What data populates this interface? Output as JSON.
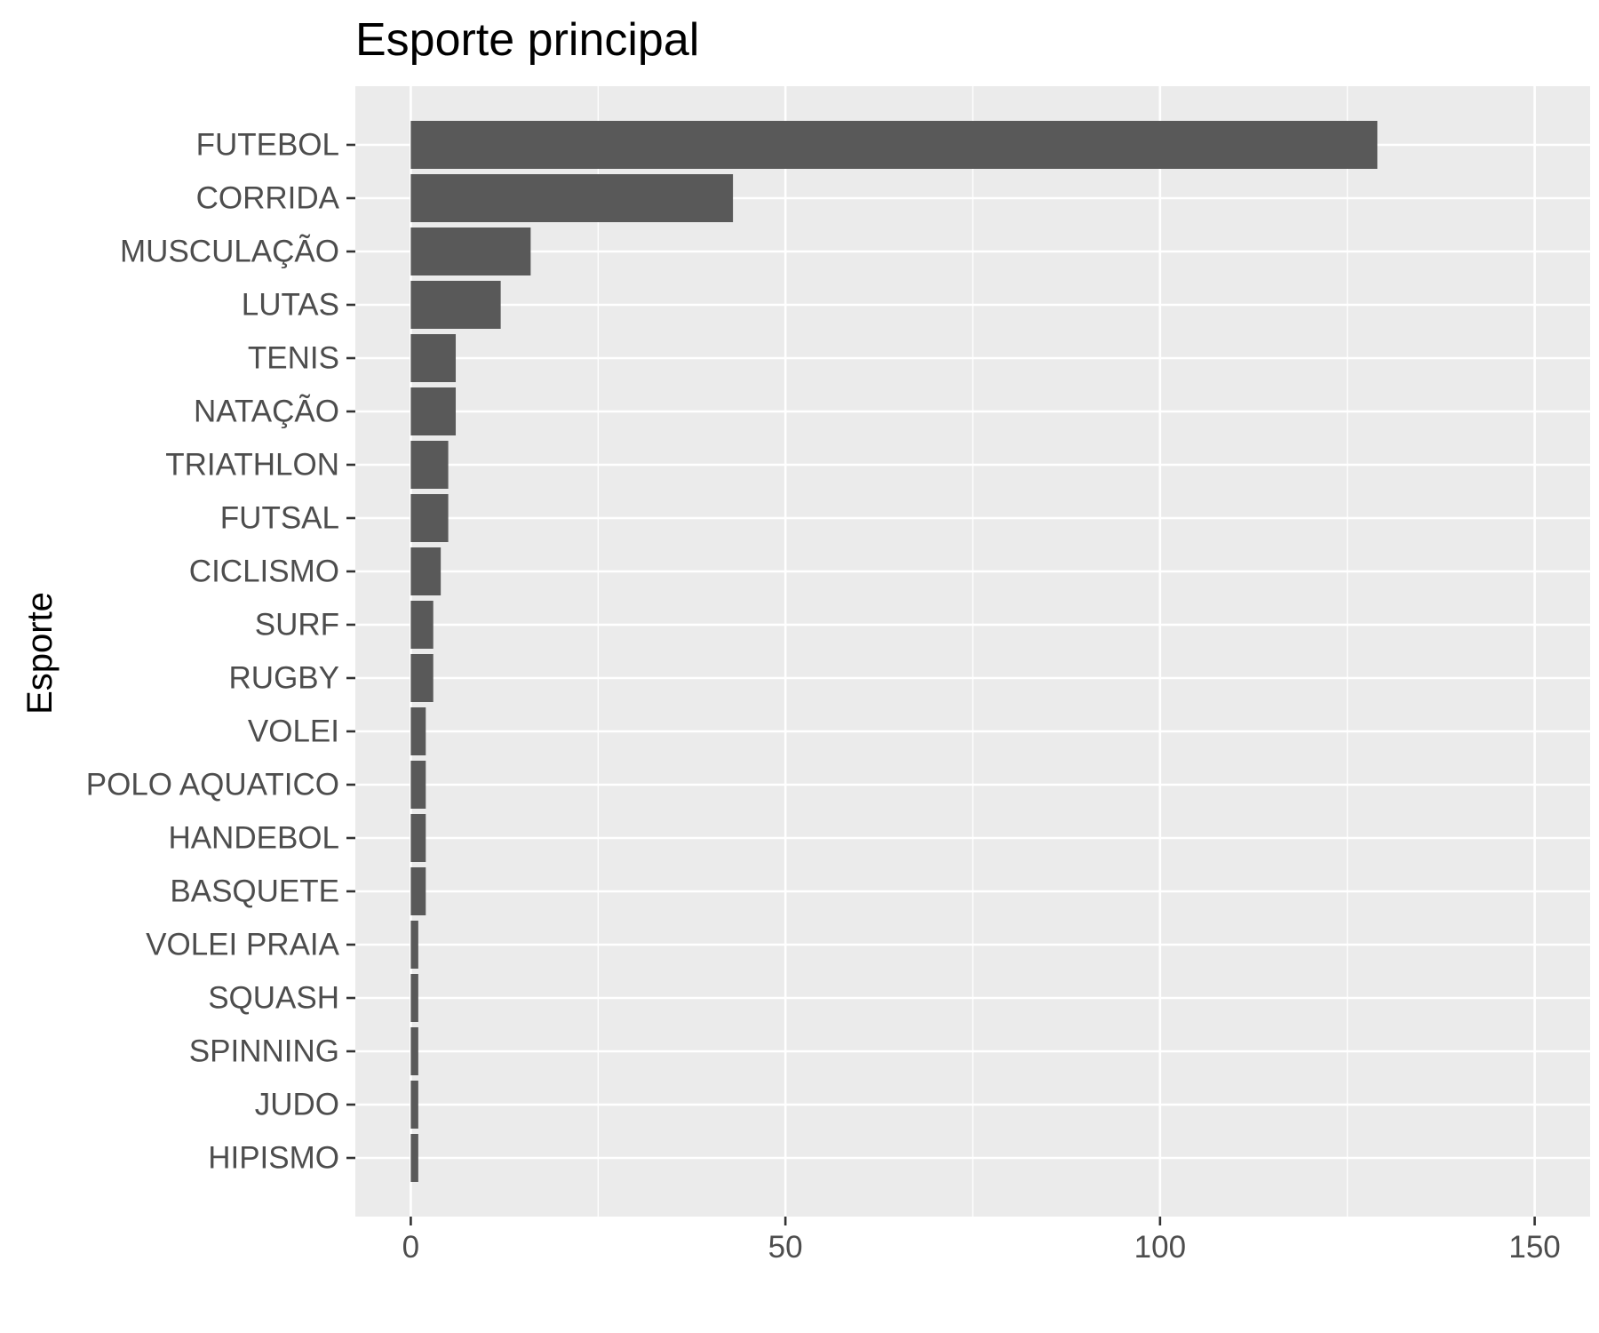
{
  "chart_data": {
    "type": "bar",
    "orientation": "horizontal",
    "title": "Esporte principal",
    "xlabel": "",
    "ylabel": "Esporte",
    "categories": [
      "FUTEBOL",
      "CORRIDA",
      "MUSCULAÇÃO",
      "LUTAS",
      "TENIS",
      "NATAÇÃO",
      "TRIATHLON",
      "FUTSAL",
      "CICLISMO",
      "SURF",
      "RUGBY",
      "VOLEI",
      "POLO AQUATICO",
      "HANDEBOL",
      "BASQUETE",
      "VOLEI PRAIA",
      "SQUASH",
      "SPINNING",
      "JUDO",
      "HIPISMO"
    ],
    "values": [
      129,
      43,
      16,
      12,
      6,
      6,
      5,
      5,
      4,
      3,
      3,
      2,
      2,
      2,
      2,
      1,
      1,
      1,
      1,
      1
    ],
    "xlim": [
      -7.4,
      157.4
    ],
    "xticks": [
      0,
      50,
      100,
      150
    ],
    "grid": true,
    "colors": {
      "bar": "#595959",
      "panel": "#ebebeb",
      "grid": "#ffffff",
      "tick_text": "#4d4d4d"
    }
  }
}
